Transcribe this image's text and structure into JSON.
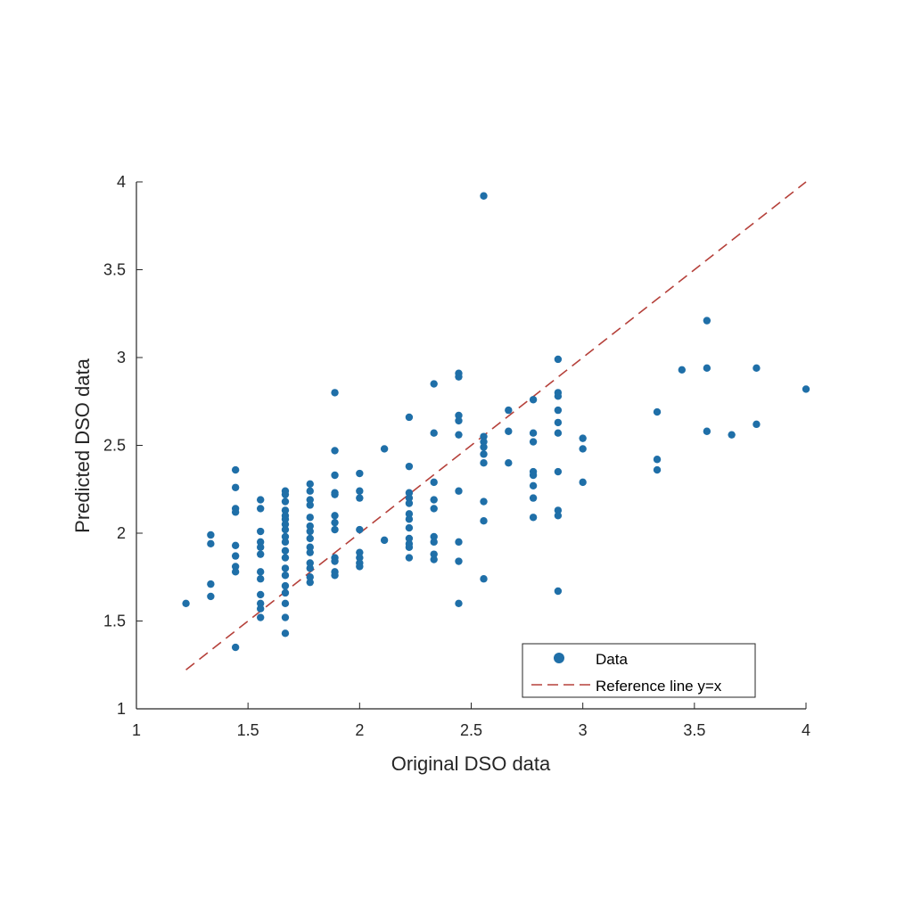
{
  "chart_data": {
    "type": "scatter",
    "title": "",
    "xlabel": "Original DSO data",
    "ylabel": "Predicted DSO data",
    "xlim": [
      1,
      4
    ],
    "ylim": [
      1,
      4
    ],
    "xticks": [
      "1",
      "1.5",
      "2",
      "2.5",
      "3",
      "3.5",
      "4"
    ],
    "yticks": [
      "1",
      "1.5",
      "2",
      "2.5",
      "3",
      "3.5",
      "4"
    ],
    "grid": false,
    "legend_position": "bottom-right",
    "colors": {
      "data": "#1f6fa8",
      "reference": "#b5403a"
    },
    "series": [
      {
        "name": "Data",
        "columns": [
          {
            "x": 1.222,
            "y": [
              1.6
            ]
          },
          {
            "x": 1.333,
            "y": [
              1.99,
              1.94,
              1.71,
              1.64
            ]
          },
          {
            "x": 1.444,
            "y": [
              2.36,
              2.26,
              2.14,
              2.12,
              1.93,
              1.87,
              1.81,
              1.78,
              1.35
            ]
          },
          {
            "x": 1.556,
            "y": [
              2.19,
              2.14,
              2.01,
              1.95,
              1.92,
              1.88,
              1.78,
              1.74,
              1.65,
              1.6,
              1.57,
              1.52
            ]
          },
          {
            "x": 1.667,
            "y": [
              2.24,
              2.22,
              2.18,
              2.13,
              2.1,
              2.08,
              2.05,
              2.02,
              1.98,
              1.95,
              1.9,
              1.86,
              1.8,
              1.76,
              1.7,
              1.66,
              1.6,
              1.52,
              1.43
            ]
          },
          {
            "x": 1.778,
            "y": [
              2.28,
              2.24,
              2.19,
              2.16,
              2.09,
              2.04,
              2.01,
              1.97,
              1.92,
              1.89,
              1.83,
              1.8,
              1.75,
              1.72
            ]
          },
          {
            "x": 1.889,
            "y": [
              2.8,
              2.47,
              2.33,
              2.23,
              2.22,
              2.1,
              2.06,
              2.02,
              1.86,
              1.84,
              1.78,
              1.76
            ]
          },
          {
            "x": 2.0,
            "y": [
              2.34,
              2.24,
              2.2,
              2.02,
              1.89,
              1.86,
              1.83,
              1.81
            ]
          },
          {
            "x": 2.111,
            "y": [
              2.48,
              1.96
            ]
          },
          {
            "x": 2.222,
            "y": [
              2.66,
              2.38,
              2.23,
              2.2,
              2.17,
              2.11,
              2.08,
              2.03,
              1.97,
              1.94,
              1.92,
              1.86
            ]
          },
          {
            "x": 2.333,
            "y": [
              2.85,
              2.57,
              2.29,
              2.19,
              2.14,
              1.98,
              1.95,
              1.88,
              1.85
            ]
          },
          {
            "x": 2.444,
            "y": [
              2.91,
              2.89,
              2.67,
              2.64,
              2.56,
              2.24,
              1.95,
              1.84,
              1.6
            ]
          },
          {
            "x": 2.556,
            "y": [
              3.92,
              2.55,
              2.52,
              2.49,
              2.45,
              2.4,
              2.18,
              2.07,
              1.74
            ]
          },
          {
            "x": 2.667,
            "y": [
              2.7,
              2.58,
              2.4
            ]
          },
          {
            "x": 2.778,
            "y": [
              2.76,
              2.57,
              2.52,
              2.35,
              2.33,
              2.27,
              2.2,
              2.09
            ]
          },
          {
            "x": 2.889,
            "y": [
              2.99,
              2.8,
              2.78,
              2.7,
              2.63,
              2.57,
              2.35,
              2.13,
              2.1,
              1.67
            ]
          },
          {
            "x": 3.0,
            "y": [
              2.54,
              2.48,
              2.29
            ]
          },
          {
            "x": 3.333,
            "y": [
              2.69,
              2.42,
              2.36
            ]
          },
          {
            "x": 3.444,
            "y": [
              2.93
            ]
          },
          {
            "x": 3.556,
            "y": [
              3.21,
              2.94,
              2.58
            ]
          },
          {
            "x": 3.667,
            "y": [
              2.56
            ]
          },
          {
            "x": 3.778,
            "y": [
              2.94,
              2.62
            ]
          },
          {
            "x": 4.0,
            "y": [
              2.82
            ]
          }
        ]
      },
      {
        "name": "Reference line y=x",
        "type": "line",
        "style": "dashed",
        "x": [
          1.222,
          4.0
        ],
        "y": [
          1.222,
          4.0
        ]
      }
    ]
  }
}
